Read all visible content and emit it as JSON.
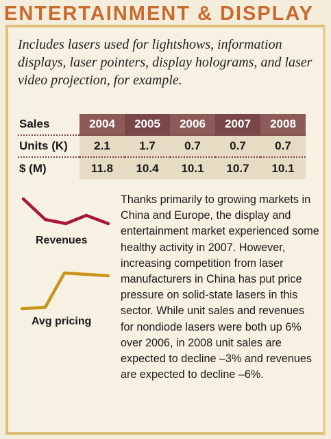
{
  "header": {
    "title": "ENTERTAINMENT & DISPLAY"
  },
  "intro": "Includes lasers used for lightshows, information displays, laser pointers, display holograms, and laser video projection, for example.",
  "table": {
    "corner": "Sales",
    "years": [
      "2004",
      "2005",
      "2006",
      "2007",
      "2008"
    ],
    "rows": [
      {
        "label": "Units (K)",
        "values": [
          "2.1",
          "1.7",
          "0.7",
          "0.7",
          "0.7"
        ]
      },
      {
        "label": "$ (M)",
        "values": [
          "11.8",
          "10.4",
          "10.1",
          "10.7",
          "10.1"
        ]
      }
    ]
  },
  "charts": {
    "revenues": {
      "label": "Revenues",
      "color": "#a8163c",
      "values": [
        11.8,
        10.4,
        10.1,
        10.7,
        10.1
      ]
    },
    "pricing": {
      "label": "Avg pricing",
      "color": "#c9941a"
    }
  },
  "body": "Thanks primarily to growing markets in China and Europe, the display and entertainment market experienced some healthy activity in 2007. However, increasing competition from laser manufacturers in China has put price pressure on solid-state lasers in this sector. While unit sales and revenues for nondiode lasers were both up 6% over 2006, in 2008 unit sales are expected to decline –3% and revenues are expected to decline –6%."
}
